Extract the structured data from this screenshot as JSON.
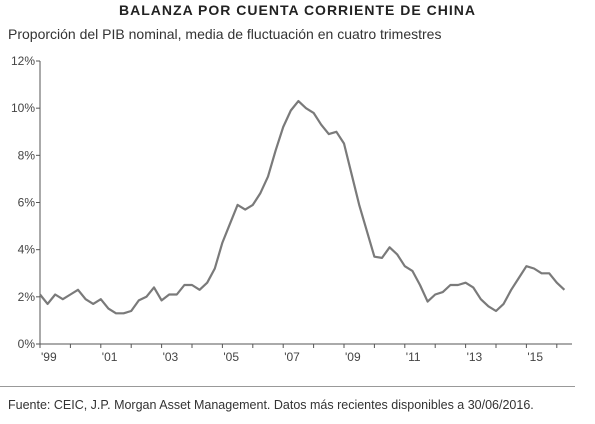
{
  "chart_data": {
    "type": "line",
    "title": "BALANZA POR CUENTA CORRIENTE DE CHINA",
    "subtitle": "Proporción del PIB nominal, media de fluctuación en cuatro trimestres",
    "xlabel": "",
    "ylabel": "",
    "xlim": [
      1999.0,
      2016.5
    ],
    "ylim": [
      0,
      12
    ],
    "y_ticks": [
      0,
      2,
      4,
      6,
      8,
      10,
      12
    ],
    "y_tick_labels": [
      "0%",
      "2%",
      "4%",
      "6%",
      "8%",
      "10%",
      "12%"
    ],
    "x_ticks": [
      1999,
      2001,
      2003,
      2005,
      2007,
      2009,
      2011,
      2013,
      2015
    ],
    "x_tick_labels": [
      "'99",
      "'01",
      "'03",
      "'05",
      "'07",
      "'09",
      "'11",
      "'13",
      "'15"
    ],
    "grid": false,
    "color": "#7a7a7a",
    "series": [
      {
        "x": [
          1999.0,
          1999.25,
          1999.5,
          1999.75,
          2000.0,
          2000.25,
          2000.5,
          2000.75,
          2001.0,
          2001.25,
          2001.5,
          2001.75,
          2002.0,
          2002.25,
          2002.5,
          2002.75,
          2003.0,
          2003.25,
          2003.5,
          2003.75,
          2004.0,
          2004.25,
          2004.5,
          2004.75,
          2005.0,
          2005.25,
          2005.5,
          2005.75,
          2006.0,
          2006.25,
          2006.5,
          2006.75,
          2007.0,
          2007.25,
          2007.5,
          2007.75,
          2008.0,
          2008.25,
          2008.5,
          2008.75,
          2009.0,
          2009.25,
          2009.5,
          2009.75,
          2010.0,
          2010.25,
          2010.5,
          2010.75,
          2011.0,
          2011.25,
          2011.5,
          2011.75,
          2012.0,
          2012.25,
          2012.5,
          2012.75,
          2013.0,
          2013.25,
          2013.5,
          2013.75,
          2014.0,
          2014.25,
          2014.5,
          2014.75,
          2015.0,
          2015.25,
          2015.5,
          2015.75,
          2016.0,
          2016.25
        ],
        "y": [
          2.1,
          1.7,
          2.1,
          1.9,
          2.1,
          2.3,
          1.9,
          1.7,
          1.9,
          1.5,
          1.3,
          1.3,
          1.4,
          1.85,
          2.0,
          2.4,
          1.85,
          2.1,
          2.1,
          2.5,
          2.5,
          2.3,
          2.6,
          3.2,
          4.3,
          5.1,
          5.9,
          5.7,
          5.9,
          6.4,
          7.1,
          8.2,
          9.2,
          9.9,
          10.3,
          10.0,
          9.8,
          9.3,
          8.9,
          9.0,
          8.5,
          7.2,
          5.9,
          4.8,
          3.7,
          3.65,
          4.1,
          3.8,
          3.3,
          3.1,
          2.5,
          1.8,
          2.1,
          2.2,
          2.5,
          2.5,
          2.6,
          2.4,
          1.9,
          1.6,
          1.4,
          1.7,
          2.3,
          2.8,
          3.3,
          3.2,
          3.0,
          3.0,
          2.6,
          2.3
        ]
      }
    ]
  },
  "source": "Fuente: CEIC, J.P. Morgan Asset Management. Datos más recientes disponibles a 30/06/2016."
}
